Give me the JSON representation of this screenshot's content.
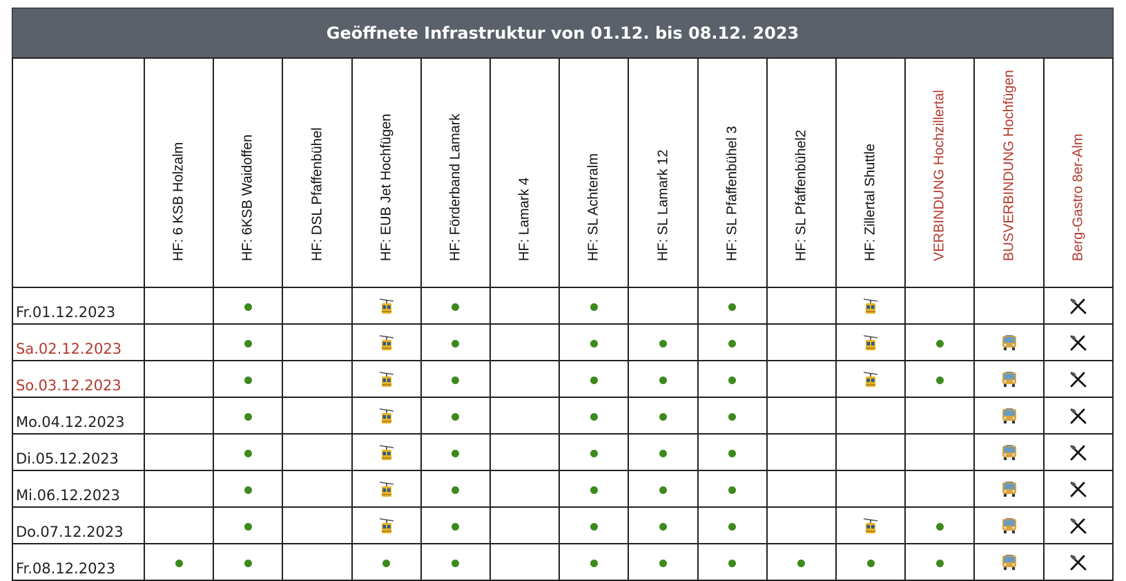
{
  "title": "Geöffnete Infrastruktur von 01.12. bis 08.12. 2023",
  "colors": {
    "header_bg": "#5a616a",
    "accent_red": "#b23a2e",
    "open_dot": "#3d8a1c"
  },
  "icon_legend": {
    "dot": "green-dot-icon",
    "gondola": "aerial-tramway-icon",
    "bus": "bus-icon",
    "dine": "fork-and-knife-icon"
  },
  "columns": [
    {
      "label": "HF: 6 KSB Holzalm",
      "red": false
    },
    {
      "label": "HF: 6KSB Waidoffen",
      "red": false
    },
    {
      "label": "HF: DSL Pfaffenbühel",
      "red": false
    },
    {
      "label": "HF: EUB Jet Hochfügen",
      "red": false
    },
    {
      "label": "HF: Förderband Lamark",
      "red": false
    },
    {
      "label": "HF: Lamark 4",
      "red": false
    },
    {
      "label": "HF: SL Achteralm",
      "red": false
    },
    {
      "label": "HF: SL Lamark 12",
      "red": false
    },
    {
      "label": "HF: SL Pfaffenbühel 3",
      "red": false
    },
    {
      "label": "HF: SL Pfaffenbühel2",
      "red": false
    },
    {
      "label": "HF: Zillertal Shuttle",
      "red": false
    },
    {
      "label": "VERBINDUNG Hochzillertal",
      "red": true
    },
    {
      "label": "BUSVERBINDUNG Hochfügen",
      "red": true
    },
    {
      "label": "Berg-Gastro 8er-Alm",
      "red": true
    }
  ],
  "rows": [
    {
      "date": "Fr.01.12.2023",
      "red": false,
      "cells": [
        "",
        "dot",
        "",
        "gondola",
        "dot",
        "",
        "dot",
        "",
        "dot",
        "",
        "gondola",
        "",
        "",
        "dine"
      ]
    },
    {
      "date": "Sa.02.12.2023",
      "red": true,
      "cells": [
        "",
        "dot",
        "",
        "gondola",
        "dot",
        "",
        "dot",
        "dot",
        "dot",
        "",
        "gondola",
        "dot",
        "bus",
        "dine"
      ]
    },
    {
      "date": "So.03.12.2023",
      "red": true,
      "cells": [
        "",
        "dot",
        "",
        "gondola",
        "dot",
        "",
        "dot",
        "dot",
        "dot",
        "",
        "gondola",
        "dot",
        "bus",
        "dine"
      ]
    },
    {
      "date": "Mo.04.12.2023",
      "red": false,
      "cells": [
        "",
        "dot",
        "",
        "gondola",
        "dot",
        "",
        "dot",
        "dot",
        "dot",
        "",
        "",
        "",
        "bus",
        "dine"
      ]
    },
    {
      "date": "Di.05.12.2023",
      "red": false,
      "cells": [
        "",
        "dot",
        "",
        "gondola",
        "dot",
        "",
        "dot",
        "dot",
        "dot",
        "",
        "",
        "",
        "bus",
        "dine"
      ]
    },
    {
      "date": "Mi.06.12.2023",
      "red": false,
      "cells": [
        "",
        "dot",
        "",
        "gondola",
        "dot",
        "",
        "dot",
        "dot",
        "dot",
        "",
        "",
        "",
        "bus",
        "dine"
      ]
    },
    {
      "date": "Do.07.12.2023",
      "red": false,
      "cells": [
        "",
        "dot",
        "",
        "gondola",
        "dot",
        "",
        "dot",
        "dot",
        "dot",
        "",
        "gondola",
        "dot",
        "bus",
        "dine"
      ]
    },
    {
      "date": "Fr.08.12.2023",
      "red": false,
      "cells": [
        "dot",
        "dot",
        "",
        "dot",
        "dot",
        "",
        "dot",
        "dot",
        "dot",
        "dot",
        "dot",
        "dot",
        "bus",
        "dine"
      ]
    }
  ]
}
